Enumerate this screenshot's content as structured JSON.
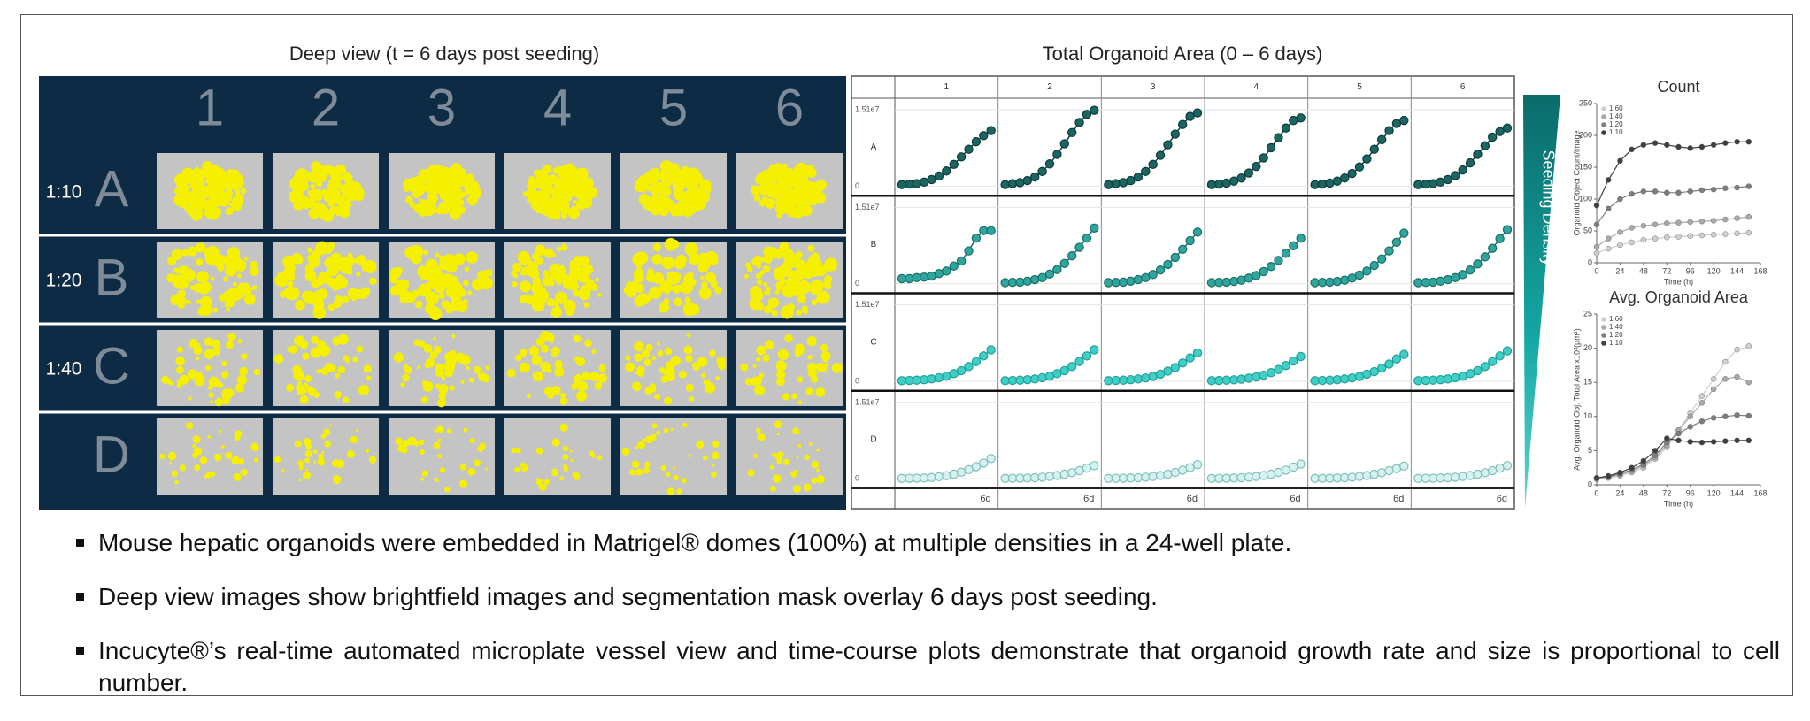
{
  "deep_view": {
    "title": "Deep view (t = 6 days post seeding)",
    "columns": [
      "1",
      "2",
      "3",
      "4",
      "5",
      "6"
    ],
    "rows": [
      "A",
      "B",
      "C",
      "D"
    ],
    "row_labels": [
      "1:10",
      "1:20",
      "1:40",
      null
    ]
  },
  "chart_data": [
    {
      "type": "small-multiples-line",
      "title": "Total Organoid Area (0 – 6 days)",
      "annotation": "Seeding Density",
      "columns": [
        "1",
        "2",
        "3",
        "4",
        "5",
        "6"
      ],
      "x": [
        0,
        0.5,
        1,
        1.5,
        2,
        2.5,
        3,
        3.5,
        4,
        4.5,
        5,
        5.5,
        6
      ],
      "xlim": [
        0,
        6
      ],
      "xticks": [
        {
          "value": 6,
          "label": "6d"
        }
      ],
      "ylim": [
        -500000.0,
        16000000.0
      ],
      "yticks": [
        0,
        {
          "value": 15100000.0,
          "label": "1.51e7"
        }
      ],
      "series": [
        {
          "name": "A",
          "color": "#1b6663",
          "edgecolor": "#0d3b39",
          "panels": [
            [
              300000.0,
              400000.0,
              500000.0,
              800000.0,
              1300000.0,
              2000000.0,
              3000000.0,
              4300000.0,
              5800000.0,
              7300000.0,
              8800000.0,
              10000000.0,
              11000000.0
            ],
            [
              300000.0,
              500000.0,
              700000.0,
              1100000.0,
              1800000.0,
              2900000.0,
              4400000.0,
              6300000.0,
              8400000.0,
              10600000.0,
              12600000.0,
              14200000.0,
              15000000.0
            ],
            [
              300000.0,
              500000.0,
              700000.0,
              1100000.0,
              1800000.0,
              2900000.0,
              4300000.0,
              6100000.0,
              8200000.0,
              10300000.0,
              12200000.0,
              13800000.0,
              14500000.0
            ],
            [
              300000.0,
              400000.0,
              600000.0,
              1000000.0,
              1600000.0,
              2600000.0,
              3900000.0,
              5600000.0,
              7600000.0,
              9600000.0,
              11500000.0,
              13000000.0,
              13500000.0
            ],
            [
              300000.0,
              400000.0,
              600000.0,
              1000000.0,
              1600000.0,
              2500000.0,
              3800000.0,
              5400000.0,
              7300000.0,
              9200000.0,
              11000000.0,
              12400000.0,
              13000000.0
            ],
            [
              300000.0,
              400000.0,
              500000.0,
              800000.0,
              1300000.0,
              2100000.0,
              3200000.0,
              4600000.0,
              6300000.0,
              8000000.0,
              9700000.0,
              10800000.0,
              11500000.0
            ]
          ]
        },
        {
          "name": "B",
          "color": "#2ea59d",
          "edgecolor": "#1a6e68",
          "panels": [
            [
              1000000.0,
              1000000.0,
              1200000.0,
              1300000.0,
              1500000.0,
              2000000.0,
              2500000.0,
              3500000.0,
              4500000.0,
              6500000.0,
              9000000.0,
              10500000.0,
              10500000.0
            ],
            [
              200000.0,
              250000.0,
              300000.0,
              500000.0,
              800000.0,
              1200000.0,
              1900000.0,
              2800000.0,
              4000000.0,
              5500000.0,
              7200000.0,
              9000000.0,
              11000000.0
            ],
            [
              200000.0,
              250000.0,
              300000.0,
              500000.0,
              800000.0,
              1200000.0,
              1800000.0,
              2700000.0,
              3800000.0,
              5200000.0,
              6800000.0,
              8500000.0,
              10200000.0
            ],
            [
              200000.0,
              250000.0,
              300000.0,
              450000.0,
              700000.0,
              1100000.0,
              1600000.0,
              2400000.0,
              3400000.0,
              4600000.0,
              6000000.0,
              7500000.0,
              9000000.0
            ],
            [
              200000.0,
              250000.0,
              300000.0,
              450000.0,
              700000.0,
              1100000.0,
              1700000.0,
              2500000.0,
              3600000.0,
              4900000.0,
              6500000.0,
              8200000.0,
              10000000.0
            ],
            [
              200000.0,
              250000.0,
              300000.0,
              500000.0,
              800000.0,
              1200000.0,
              1800000.0,
              2700000.0,
              3900000.0,
              5300000.0,
              7000000.0,
              8900000.0,
              10700000.0
            ]
          ]
        },
        {
          "name": "C",
          "color": "#3fcfc6",
          "edgecolor": "#21a099",
          "panels": [
            [
              100000.0,
              150000.0,
              200000.0,
              300000.0,
              450000.0,
              700000.0,
              1000000.0,
              1500000.0,
              2100000.0,
              2900000.0,
              3900000.0,
              5000000.0,
              6200000.0
            ],
            [
              100000.0,
              150000.0,
              200000.0,
              300000.0,
              450000.0,
              700000.0,
              1000000.0,
              1500000.0,
              2100000.0,
              2900000.0,
              3900000.0,
              5000000.0,
              6200000.0
            ],
            [
              100000.0,
              150000.0,
              200000.0,
              300000.0,
              450000.0,
              650000.0,
              950000.0,
              1400000.0,
              2000000.0,
              2700000.0,
              3600000.0,
              4600000.0,
              5600000.0
            ],
            [
              100000.0,
              150000.0,
              200000.0,
              280000.0,
              400000.0,
              600000.0,
              850000.0,
              1200000.0,
              1700000.0,
              2300000.0,
              3100000.0,
              4000000.0,
              4900000.0
            ],
            [
              100000.0,
              150000.0,
              200000.0,
              300000.0,
              450000.0,
              650000.0,
              950000.0,
              1400000.0,
              1900000.0,
              2600000.0,
              3400000.0,
              4400000.0,
              5300000.0
            ],
            [
              100000.0,
              150000.0,
              200000.0,
              300000.0,
              450000.0,
              700000.0,
              1000000.0,
              1500000.0,
              2100000.0,
              2900000.0,
              3900000.0,
              5000000.0,
              6000000.0
            ]
          ]
        },
        {
          "name": "D",
          "color": "#d6f2f0",
          "edgecolor": "#7fbfbb",
          "panels": [
            [
              50000.0,
              80000.0,
              100000.0,
              150000.0,
              250000.0,
              400000.0,
              600000.0,
              900000.0,
              1300000.0,
              1800000.0,
              2400000.0,
              3100000.0,
              4000000.0
            ],
            [
              50000.0,
              80000.0,
              100000.0,
              140000.0,
              200000.0,
              300000.0,
              450000.0,
              650000.0,
              900000.0,
              1200000.0,
              1600000.0,
              2100000.0,
              2600000.0
            ],
            [
              50000.0,
              80000.0,
              100000.0,
              140000.0,
              200000.0,
              300000.0,
              450000.0,
              650000.0,
              900000.0,
              1250000.0,
              1700000.0,
              2200000.0,
              2800000.0
            ],
            [
              50000.0,
              80000.0,
              100000.0,
              140000.0,
              200000.0,
              300000.0,
              450000.0,
              650000.0,
              900000.0,
              1250000.0,
              1700000.0,
              2300000.0,
              2900000.0
            ],
            [
              50000.0,
              80000.0,
              100000.0,
              140000.0,
              200000.0,
              300000.0,
              450000.0,
              650000.0,
              900000.0,
              1200000.0,
              1600000.0,
              2000000.0,
              2500000.0
            ],
            [
              50000.0,
              80000.0,
              100000.0,
              140000.0,
              200000.0,
              300000.0,
              450000.0,
              650000.0,
              900000.0,
              1200000.0,
              1600000.0,
              2100000.0,
              2600000.0
            ]
          ]
        }
      ]
    },
    {
      "type": "line",
      "title": "Count",
      "xlabel": "Time (h)",
      "ylabel": "Organoid Object Count/image",
      "legend": "upper-left",
      "x": [
        0,
        12,
        24,
        36,
        48,
        60,
        72,
        84,
        96,
        108,
        120,
        132,
        144,
        156
      ],
      "xlim": [
        0,
        168
      ],
      "xticks": [
        0,
        24,
        48,
        72,
        96,
        120,
        144,
        168
      ],
      "ylim": [
        0,
        250
      ],
      "yticks": [
        0,
        50,
        100,
        150,
        200,
        250
      ],
      "series": [
        {
          "name": "1:60",
          "color": "#cfcfcf",
          "values": [
            15,
            22,
            28,
            32,
            36,
            38,
            40,
            41,
            42,
            43,
            44,
            45,
            46,
            47
          ]
        },
        {
          "name": "1:40",
          "color": "#a9a9a9",
          "values": [
            25,
            38,
            48,
            55,
            58,
            60,
            62,
            63,
            64,
            65,
            66,
            68,
            70,
            72
          ]
        },
        {
          "name": "1:20",
          "color": "#7d7d7d",
          "values": [
            60,
            85,
            100,
            108,
            112,
            112,
            110,
            110,
            112,
            114,
            115,
            117,
            118,
            120
          ]
        },
        {
          "name": "1:10",
          "color": "#3f3f3f",
          "values": [
            90,
            130,
            160,
            178,
            185,
            188,
            185,
            182,
            180,
            182,
            185,
            188,
            190,
            190
          ]
        }
      ]
    },
    {
      "type": "line",
      "title": "Avg. Organoid Area",
      "xlabel": "Time (h)",
      "ylabel": "Avg. Organoid Obj. Total Area x10³(µm²)",
      "legend": "upper-left",
      "x": [
        0,
        12,
        24,
        36,
        48,
        60,
        72,
        84,
        96,
        108,
        120,
        132,
        144,
        156
      ],
      "xlim": [
        0,
        168
      ],
      "xticks": [
        0,
        24,
        48,
        72,
        96,
        120,
        144,
        168
      ],
      "ylim": [
        0,
        25
      ],
      "yticks": [
        0,
        5,
        10,
        15,
        20,
        25
      ],
      "series": [
        {
          "name": "1:60",
          "color": "#cfcfcf",
          "values": [
            0.8,
            1.0,
            1.3,
            1.8,
            2.5,
            3.8,
            5.5,
            8,
            10.5,
            13,
            15.5,
            18,
            19.8,
            20.3
          ]
        },
        {
          "name": "1:40",
          "color": "#a9a9a9",
          "values": [
            0.9,
            1.1,
            1.5,
            2.0,
            2.8,
            4.0,
            5.8,
            8,
            10,
            12,
            14,
            15.5,
            15.8,
            15
          ]
        },
        {
          "name": "1:20",
          "color": "#7d7d7d",
          "values": [
            1,
            1.2,
            1.6,
            2.2,
            3.0,
            4.3,
            6.2,
            7.5,
            8.5,
            9.3,
            9.8,
            10,
            10.2,
            10.1
          ]
        },
        {
          "name": "1:10",
          "color": "#3f3f3f",
          "values": [
            1,
            1.3,
            1.8,
            2.5,
            3.5,
            5,
            6.8,
            6.5,
            6.3,
            6.2,
            6.3,
            6.4,
            6.5,
            6.5
          ]
        }
      ]
    }
  ],
  "bullets": [
    "Mouse hepatic organoids were embedded in Matrigel® domes (100%) at multiple densities in a 24-well plate.",
    "Deep view images show brightfield images and segmentation mask overlay 6 days post seeding.",
    "Incucyte®’s real-time automated microplate vessel view and time-course plots demonstrate that organoid growth rate and size is proportional to  cell number."
  ]
}
